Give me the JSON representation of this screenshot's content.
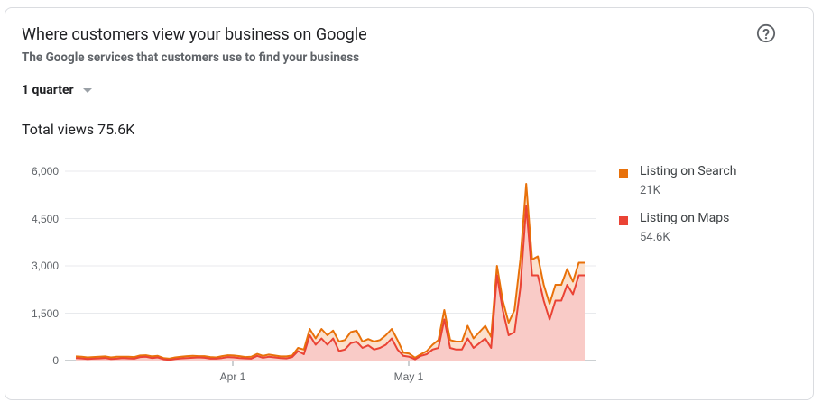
{
  "header": {
    "title": "Where customers view your business on Google",
    "subtitle": "The Google services that customers use to find your business"
  },
  "period": {
    "label": "1 quarter"
  },
  "total": {
    "label": "Total views 75.6K"
  },
  "icons": {
    "help": "help-circle-icon",
    "dropdown": "caret-down-icon"
  },
  "colors": {
    "search": "#e8710a",
    "maps": "#ea4335",
    "fill": "#f9cbc7",
    "fill_search": "#fbe0cc"
  },
  "legend": [
    {
      "name": "Listing on Search",
      "value": "21K",
      "color": "#e8710a"
    },
    {
      "name": "Listing on Maps",
      "value": "54.6K",
      "color": "#ea4335"
    }
  ],
  "chart_data": {
    "type": "area",
    "stacked": true,
    "x_tick_labels": [
      "Apr 1",
      "May 1"
    ],
    "y_ticks": [
      "6,000",
      "4,500",
      "3,000",
      "1,500",
      "0"
    ],
    "ylim": [
      0,
      6000
    ],
    "series": [
      {
        "name": "Listing on Maps",
        "values": [
          80,
          70,
          50,
          60,
          70,
          80,
          50,
          60,
          80,
          70,
          60,
          110,
          120,
          80,
          100,
          40,
          20,
          50,
          70,
          80,
          90,
          100,
          90,
          60,
          60,
          80,
          110,
          100,
          80,
          70,
          60,
          150,
          90,
          120,
          100,
          80,
          70,
          110,
          300,
          200,
          800,
          500,
          700,
          500,
          700,
          300,
          350,
          550,
          600,
          400,
          480,
          350,
          400,
          500,
          700,
          350,
          150,
          120,
          40,
          150,
          200,
          350,
          400,
          1300,
          400,
          350,
          350,
          700,
          400,
          550,
          700,
          400,
          2700,
          1600,
          800,
          900,
          2300,
          4900,
          2700,
          2700,
          1900,
          1300,
          1900,
          1900,
          2400,
          2100,
          2700,
          2700
        ],
        "color": "#ea4335"
      },
      {
        "name": "Listing on Search",
        "values": [
          50,
          50,
          50,
          50,
          50,
          50,
          50,
          60,
          40,
          50,
          50,
          50,
          50,
          50,
          50,
          40,
          40,
          50,
          50,
          60,
          60,
          40,
          50,
          50,
          40,
          60,
          60,
          60,
          60,
          40,
          60,
          60,
          60,
          70,
          60,
          50,
          60,
          50,
          100,
          150,
          200,
          200,
          300,
          300,
          250,
          300,
          300,
          350,
          350,
          200,
          200,
          250,
          250,
          300,
          300,
          300,
          100,
          100,
          50,
          50,
          100,
          150,
          250,
          300,
          250,
          250,
          250,
          400,
          300,
          350,
          400,
          350,
          300,
          300,
          400,
          700,
          900,
          700,
          500,
          600,
          500,
          500,
          500,
          500,
          500,
          400,
          400,
          400
        ],
        "color": "#e8710a"
      }
    ]
  }
}
